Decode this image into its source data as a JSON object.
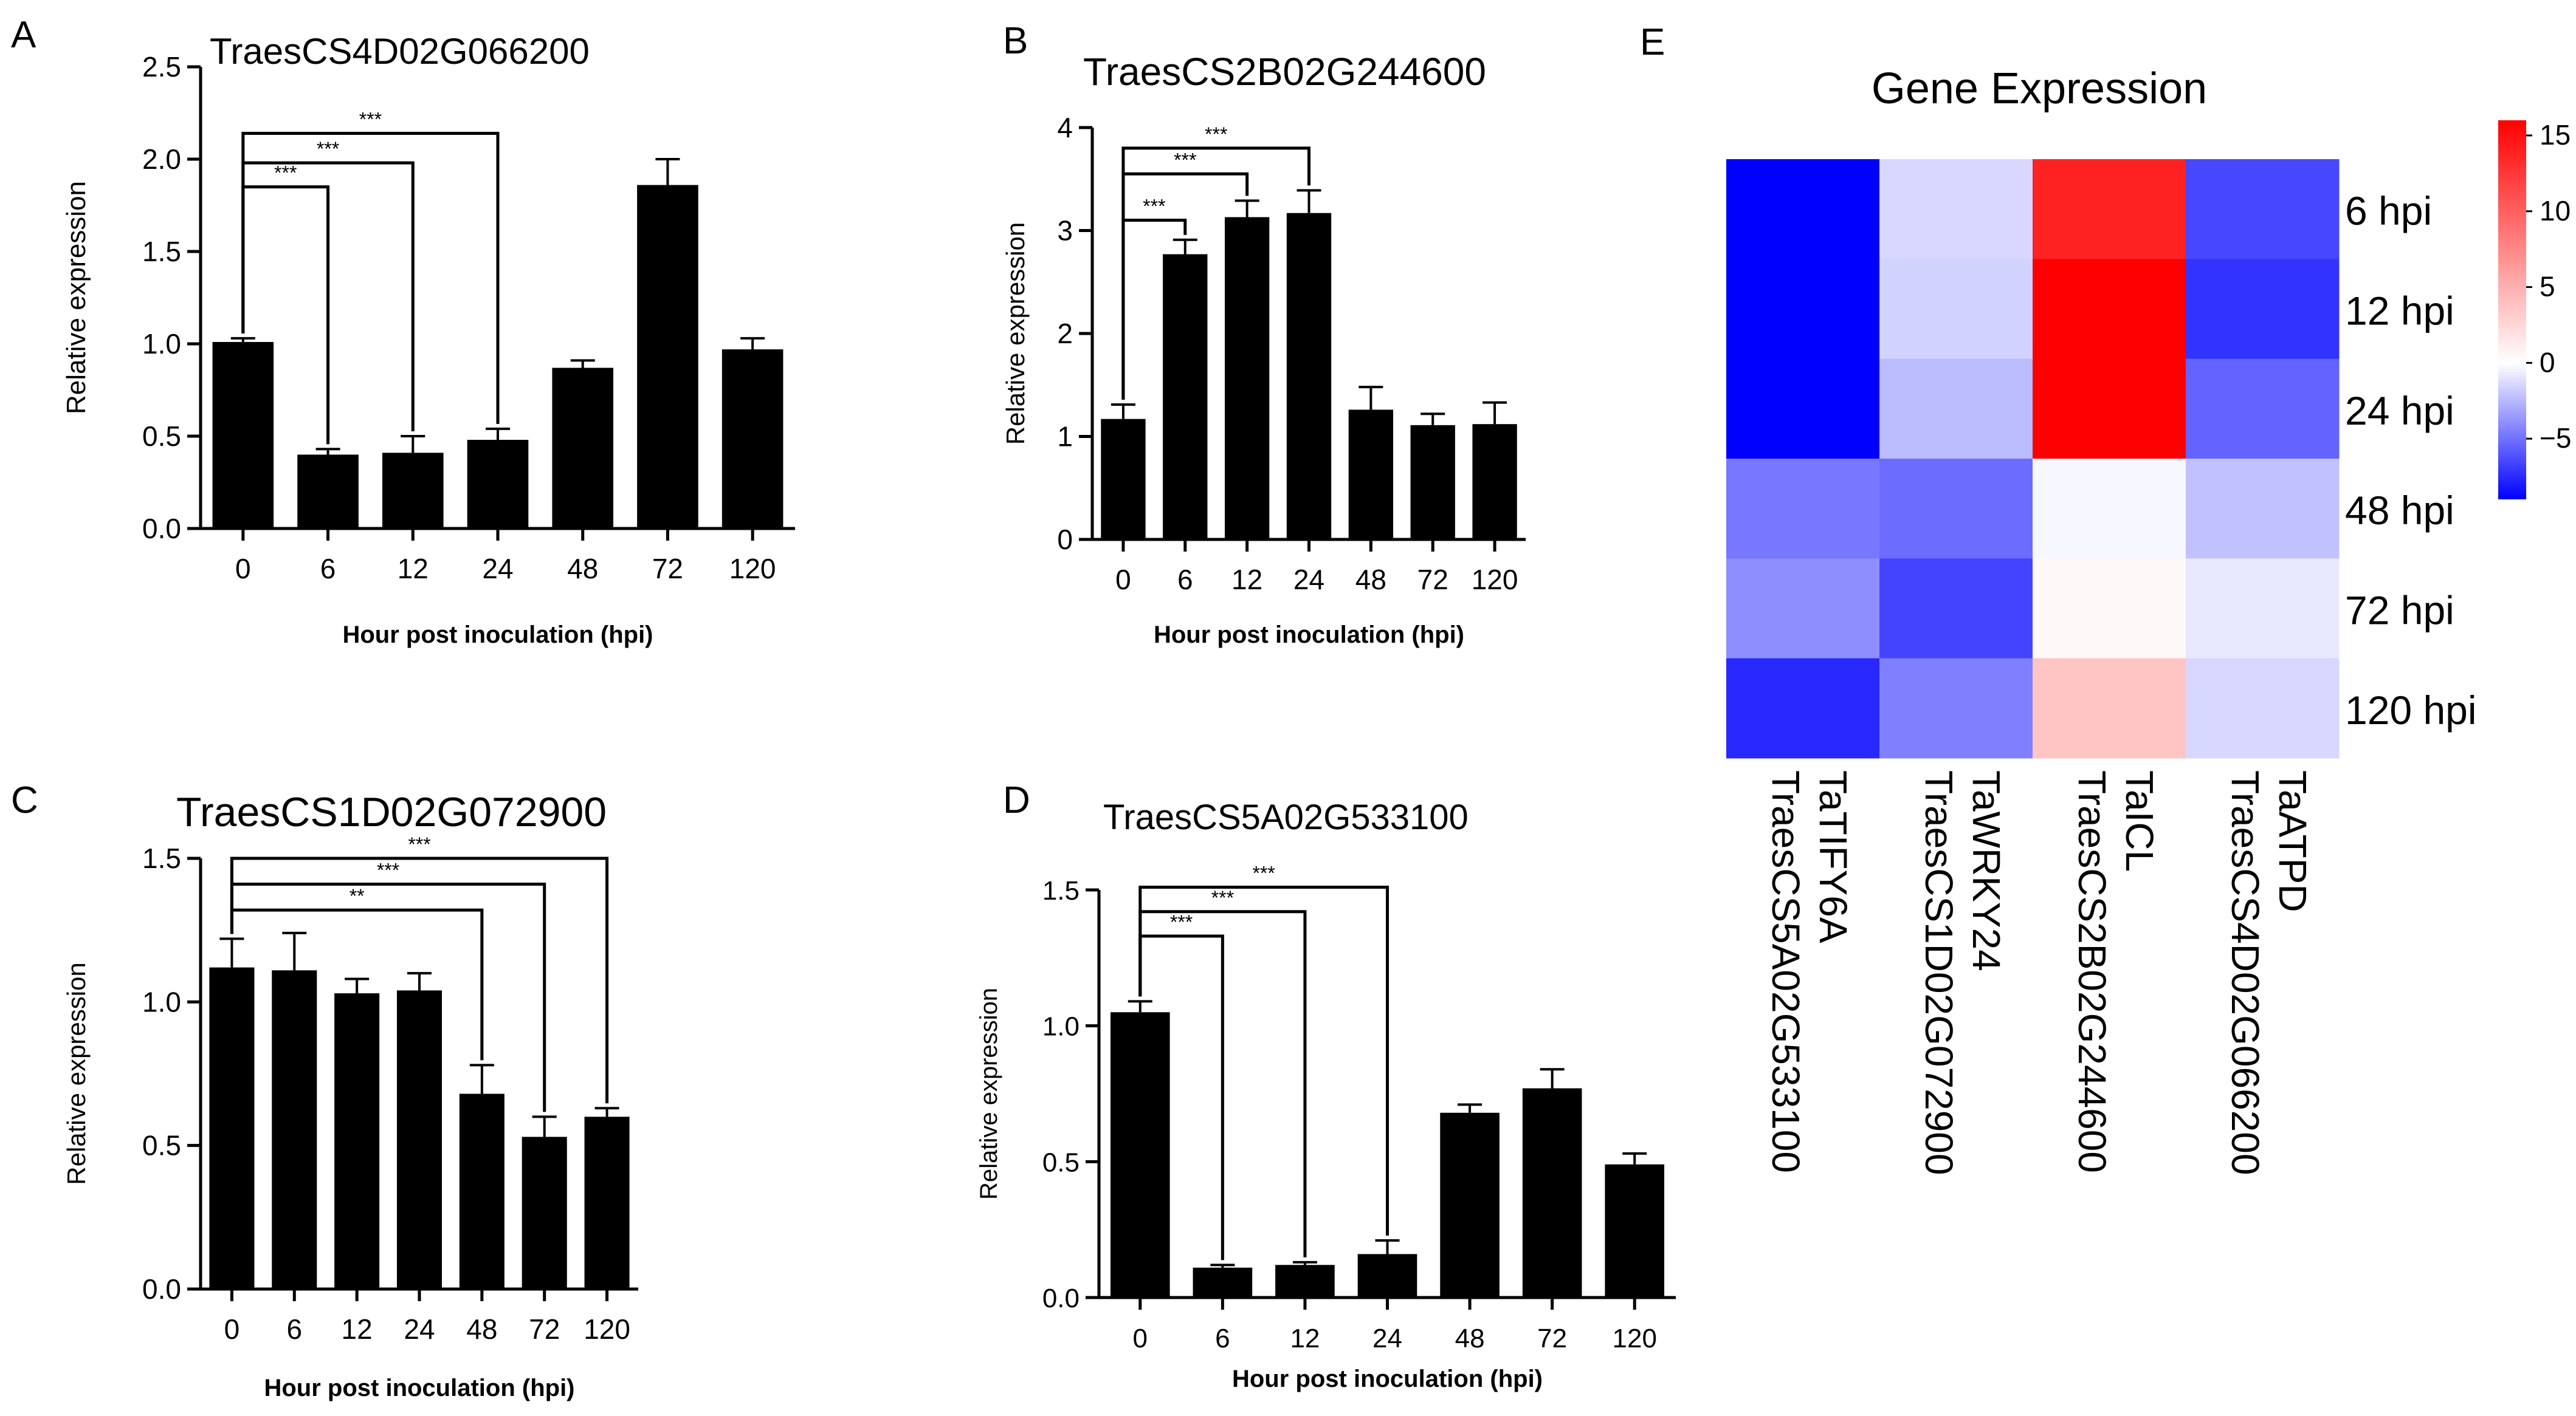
{
  "chart_data": [
    {
      "panel": "A",
      "type": "bar",
      "title": "TraesCS4D02G066200",
      "xlabel": "Hour post inoculation (hpi)",
      "ylabel": "Relative expression",
      "categories": [
        "0",
        "6",
        "12",
        "24",
        "48",
        "72",
        "120"
      ],
      "values": [
        1.01,
        0.4,
        0.41,
        0.48,
        0.87,
        1.86,
        0.97
      ],
      "errors": [
        0.02,
        0.03,
        0.09,
        0.06,
        0.04,
        0.14,
        0.06
      ],
      "yticks": [
        "0.0",
        "0.5",
        "1.0",
        "1.5",
        "2.0",
        "2.5"
      ],
      "ylim": [
        0,
        2.5
      ],
      "significance": [
        {
          "from": "0",
          "to": "6",
          "label": "***",
          "level": 1.85
        },
        {
          "from": "0",
          "to": "12",
          "label": "***",
          "level": 1.98
        },
        {
          "from": "0",
          "to": "24",
          "label": "***",
          "level": 2.14
        }
      ]
    },
    {
      "panel": "B",
      "type": "bar",
      "title": "TraesCS2B02G244600",
      "xlabel": "Hour post inoculation (hpi)",
      "ylabel": "Relative expression",
      "categories": [
        "0",
        "6",
        "12",
        "24",
        "48",
        "72",
        "120"
      ],
      "values": [
        1.17,
        2.77,
        3.13,
        3.17,
        1.26,
        1.11,
        1.12
      ],
      "errors": [
        0.14,
        0.14,
        0.16,
        0.22,
        0.22,
        0.11,
        0.21
      ],
      "yticks": [
        "0",
        "1",
        "2",
        "3",
        "4"
      ],
      "ylim": [
        0,
        4
      ],
      "significance": [
        {
          "from": "0",
          "to": "6",
          "label": "***",
          "level": 3.1
        },
        {
          "from": "0",
          "to": "12",
          "label": "***",
          "level": 3.55
        },
        {
          "from": "0",
          "to": "24",
          "label": "***",
          "level": 3.8
        }
      ]
    },
    {
      "panel": "C",
      "type": "bar",
      "title": "TraesCS1D02G072900",
      "xlabel": "Hour post inoculation (hpi)",
      "ylabel": "Relative expression",
      "categories": [
        "0",
        "6",
        "12",
        "24",
        "48",
        "72",
        "120"
      ],
      "values": [
        1.12,
        1.11,
        1.03,
        1.04,
        0.68,
        0.53,
        0.6
      ],
      "errors": [
        0.1,
        0.13,
        0.05,
        0.06,
        0.1,
        0.07,
        0.03
      ],
      "yticks": [
        "0.0",
        "0.5",
        "1.0",
        "1.5"
      ],
      "ylim": [
        0,
        1.5
      ],
      "significance": [
        {
          "from": "0",
          "to": "48",
          "label": "**",
          "level": 1.32
        },
        {
          "from": "0",
          "to": "72",
          "label": "***",
          "level": 1.41
        },
        {
          "from": "0",
          "to": "120",
          "label": "***",
          "level": 1.5
        }
      ]
    },
    {
      "panel": "D",
      "type": "bar",
      "title": "TraesCS5A02G533100",
      "xlabel": "Hour post inoculation (hpi)",
      "ylabel": "Relative expression",
      "categories": [
        "0",
        "6",
        "12",
        "24",
        "48",
        "72",
        "120"
      ],
      "values": [
        1.05,
        0.11,
        0.12,
        0.16,
        0.68,
        0.77,
        0.49
      ],
      "errors": [
        0.04,
        0.01,
        0.01,
        0.05,
        0.03,
        0.07,
        0.04
      ],
      "yticks": [
        "0.0",
        "0.5",
        "1.0",
        "1.5"
      ],
      "ylim": [
        0,
        1.5
      ],
      "significance": [
        {
          "from": "0",
          "to": "6",
          "label": "***",
          "level": 1.33
        },
        {
          "from": "0",
          "to": "12",
          "label": "***",
          "level": 1.42
        },
        {
          "from": "0",
          "to": "24",
          "label": "***",
          "level": 1.51
        }
      ]
    },
    {
      "panel": "E",
      "type": "heatmap",
      "title": "Gene Expression",
      "rows": [
        "6 hpi",
        "12 hpi",
        "24 hpi",
        "48 hpi",
        "72 hpi",
        "120 hpi"
      ],
      "columns": [
        {
          "name": "TaTIFY6A",
          "id": "TraesCS5A02G533100"
        },
        {
          "name": "TaWRKY24",
          "id": "TraesCS1D02G072900"
        },
        {
          "name": "TaICL",
          "id": "TraesCS2B02G244600"
        },
        {
          "name": "TaATPD",
          "id": "TraesCS4D02G066200"
        }
      ],
      "values": [
        [
          -9.0,
          -1.4,
          13.0,
          -6.5
        ],
        [
          -9.0,
          -1.6,
          15.0,
          -7.2
        ],
        [
          -9.0,
          -2.4,
          15.0,
          -5.5
        ],
        [
          -4.8,
          -5.2,
          -0.3,
          -2.2
        ],
        [
          -4.0,
          -6.6,
          0.4,
          -0.8
        ],
        [
          -7.6,
          -4.5,
          3.5,
          -1.4
        ]
      ],
      "colorbar": {
        "min": -9,
        "max": 16,
        "ticks": [
          "15",
          "10",
          "5",
          "0",
          "−5"
        ],
        "tick_values": [
          15,
          10,
          5,
          0,
          -5
        ]
      },
      "colors": {
        "low": "#0000ff",
        "mid": "#ffffff",
        "high": "#ff0000"
      }
    }
  ],
  "panel_letters": [
    "A",
    "B",
    "C",
    "D",
    "E"
  ]
}
